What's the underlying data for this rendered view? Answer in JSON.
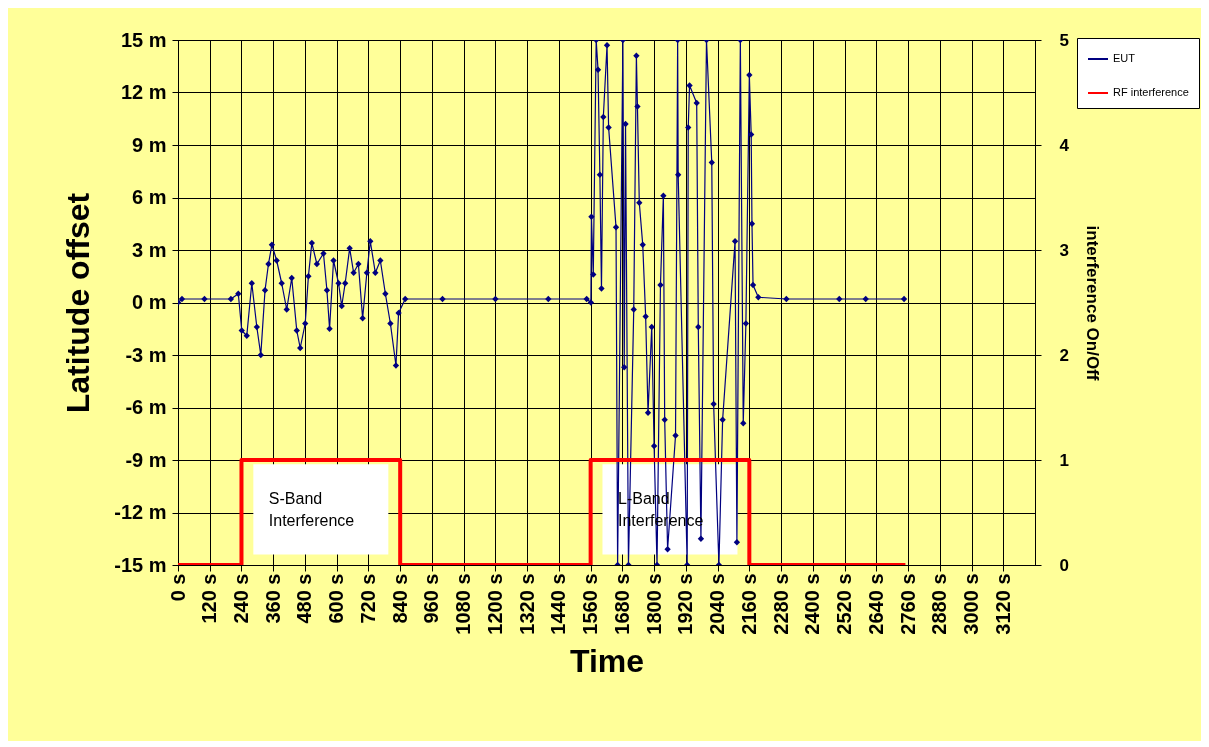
{
  "chart_data": {
    "type": "line",
    "xlabel": "Time",
    "ylabel": "Latitude offset",
    "y2label": "interference On/Off",
    "xlim": [
      0,
      3240
    ],
    "ylim": [
      -15,
      15
    ],
    "y2lim": [
      0,
      5
    ],
    "xticks": [
      {
        "value": 0,
        "label": "0 s"
      },
      {
        "value": 120,
        "label": "120 s"
      },
      {
        "value": 240,
        "label": "240 s"
      },
      {
        "value": 360,
        "label": "360 s"
      },
      {
        "value": 480,
        "label": "480 s"
      },
      {
        "value": 600,
        "label": "600 s"
      },
      {
        "value": 720,
        "label": "720 s"
      },
      {
        "value": 840,
        "label": "840 s"
      },
      {
        "value": 960,
        "label": "960 s"
      },
      {
        "value": 1080,
        "label": "1080 s"
      },
      {
        "value": 1200,
        "label": "1200 s"
      },
      {
        "value": 1320,
        "label": "1320 s"
      },
      {
        "value": 1440,
        "label": "1440 s"
      },
      {
        "value": 1560,
        "label": "1560 s"
      },
      {
        "value": 1680,
        "label": "1680 s"
      },
      {
        "value": 1800,
        "label": "1800 s"
      },
      {
        "value": 1920,
        "label": "1920 s"
      },
      {
        "value": 2040,
        "label": "2040 s"
      },
      {
        "value": 2160,
        "label": "2160 s"
      },
      {
        "value": 2280,
        "label": "2280 s"
      },
      {
        "value": 2400,
        "label": "2400 s"
      },
      {
        "value": 2520,
        "label": "2520 s"
      },
      {
        "value": 2640,
        "label": "2640 s"
      },
      {
        "value": 2760,
        "label": "2760 s"
      },
      {
        "value": 2880,
        "label": "2880 s"
      },
      {
        "value": 3000,
        "label": "3000 s"
      },
      {
        "value": 3120,
        "label": "3120 s"
      }
    ],
    "yticks": [
      {
        "value": -15,
        "label": "-15 m"
      },
      {
        "value": -12,
        "label": "-12 m"
      },
      {
        "value": -9,
        "label": "-9 m"
      },
      {
        "value": -6,
        "label": "-6 m"
      },
      {
        "value": -3,
        "label": "-3 m"
      },
      {
        "value": 0,
        "label": "0 m"
      },
      {
        "value": 3,
        "label": "3 m"
      },
      {
        "value": 6,
        "label": "6 m"
      },
      {
        "value": 9,
        "label": "9 m"
      },
      {
        "value": 12,
        "label": "12 m"
      },
      {
        "value": 15,
        "label": "15 m"
      }
    ],
    "y2ticks": [
      0,
      1,
      2,
      3,
      4,
      5
    ],
    "grid": true,
    "legend": "top right",
    "marker": "diamond",
    "line_style": "solid",
    "series": [
      {
        "name": "EUT",
        "color": "#000080",
        "x": [
          0,
          15,
          100,
          200,
          228,
          241,
          260,
          279,
          298,
          313,
          329,
          342,
          355,
          373,
          392,
          411,
          430,
          449,
          462,
          481,
          493,
          506,
          525,
          550,
          563,
          573,
          588,
          607,
          619,
          632,
          649,
          664,
          682,
          698,
          714,
          727,
          746,
          765,
          784,
          803,
          824,
          834,
          859,
          1000,
          1200,
          1400,
          1545,
          1561,
          1563,
          1570,
          1581,
          1588,
          1595,
          1601,
          1608,
          1622,
          1628,
          1656,
          1662,
          1682,
          1687,
          1692,
          1703,
          1723,
          1733,
          1737,
          1744,
          1757,
          1768,
          1777,
          1791,
          1800,
          1811,
          1824,
          1835,
          1840,
          1851,
          1881,
          1889,
          1891,
          1925,
          1929,
          1934,
          1961,
          1967,
          1977,
          1998,
          2018,
          2025,
          2045,
          2059,
          2106,
          2113,
          2126,
          2137,
          2147,
          2160,
          2167,
          2170,
          2174,
          2194,
          2300,
          2500,
          2600,
          2745
        ],
        "values": [
          0,
          0.2,
          0.2,
          0.2,
          0.5,
          -1.6,
          -1.9,
          1.1,
          -1.4,
          -3.0,
          0.7,
          2.2,
          3.3,
          2.4,
          1.1,
          -0.4,
          1.4,
          -1.6,
          -2.6,
          -1.2,
          1.5,
          3.4,
          2.2,
          2.8,
          0.7,
          -1.5,
          2.4,
          1.1,
          -0.2,
          1.1,
          3.1,
          1.7,
          2.2,
          -0.9,
          1.7,
          3.5,
          1.7,
          2.4,
          0.5,
          -1.2,
          -3.6,
          -0.6,
          0.2,
          0.2,
          0.2,
          0.2,
          0.2,
          0,
          4.9,
          1.6,
          15,
          13.3,
          7.3,
          0.8,
          10.6,
          14.7,
          10,
          4.3,
          -15,
          15,
          -3.7,
          10.2,
          -15,
          -0.4,
          14.1,
          11.2,
          5.7,
          3.3,
          -0.8,
          -6.3,
          -1.4,
          -8.2,
          -15,
          1.0,
          6.1,
          -6.7,
          -14.1,
          -7.6,
          15,
          7.3,
          -15,
          10,
          12.4,
          11.4,
          -1.4,
          -13.5,
          15,
          8,
          -5.8,
          -15,
          -6.7,
          3.5,
          -13.7,
          15,
          -6.9,
          -1.2,
          13,
          9.6,
          4.5,
          1.0,
          0.3,
          0.2,
          0.2,
          0.2,
          0.2
        ]
      },
      {
        "name": "RF interference",
        "type": "step",
        "axis": "y2",
        "color": "#ff0000",
        "marker": "none",
        "x": [
          0,
          240,
          840,
          1560,
          2160,
          2750
        ],
        "values": [
          0,
          1,
          0,
          1,
          0,
          0
        ]
      }
    ],
    "annotations": [
      "S-Band Interference",
      "L-Band Interference"
    ]
  }
}
